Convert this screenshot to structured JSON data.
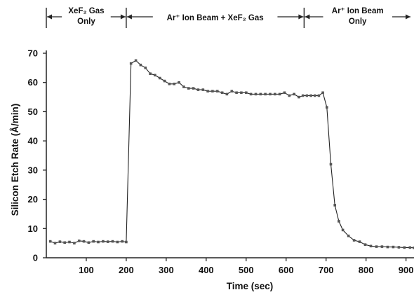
{
  "chart_data": {
    "type": "line",
    "title": "",
    "xlabel": "Time (sec)",
    "ylabel": "Silicon Etch Rate (Å/min)",
    "xlim": [
      0,
      920
    ],
    "ylim": [
      0,
      70
    ],
    "xticks": [
      100,
      200,
      300,
      400,
      500,
      600,
      700,
      800,
      900
    ],
    "yticks": [
      0,
      10,
      20,
      30,
      40,
      50,
      60,
      70
    ],
    "grid": false,
    "marker": "square",
    "line_color": "#222222",
    "marker_color": "#555555",
    "phases": [
      {
        "start": 0,
        "end": 200,
        "label": [
          "XeF₂ Gas",
          "Only"
        ]
      },
      {
        "start": 200,
        "end": 645,
        "label": [
          "Ar⁺ Ion Beam + XeF₂ Gas"
        ]
      },
      {
        "start": 645,
        "end": 920,
        "label": [
          "Ar⁺ Ion Beam",
          "Only"
        ]
      }
    ],
    "series": [
      {
        "x": [
          10,
          22,
          34,
          46,
          58,
          70,
          82,
          94,
          106,
          118,
          130,
          142,
          154,
          166,
          178,
          190,
          200,
          212,
          224,
          236,
          248,
          260,
          272,
          284,
          296,
          308,
          320,
          332,
          344,
          356,
          368,
          380,
          392,
          404,
          416,
          428,
          440,
          452,
          464,
          476,
          488,
          500,
          512,
          524,
          536,
          548,
          560,
          572,
          584,
          596,
          608,
          620,
          632,
          642,
          652,
          662,
          672,
          682,
          692,
          702,
          712,
          722,
          732,
          742,
          756,
          770,
          784,
          798,
          812,
          826,
          840,
          854,
          868,
          882,
          896,
          910,
          920
        ],
        "y": [
          5.6,
          5.0,
          5.5,
          5.2,
          5.4,
          5.0,
          5.8,
          5.6,
          5.2,
          5.6,
          5.4,
          5.6,
          5.5,
          5.6,
          5.4,
          5.6,
          5.4,
          66.5,
          67.5,
          66.0,
          65.0,
          63.0,
          62.5,
          61.5,
          60.5,
          59.5,
          59.5,
          60.0,
          58.5,
          58.0,
          58.0,
          57.5,
          57.5,
          57.0,
          57.0,
          57.0,
          56.5,
          56.0,
          57.0,
          56.5,
          56.5,
          56.5,
          56.0,
          56.0,
          56.0,
          56.0,
          56.0,
          56.0,
          56.0,
          56.5,
          55.5,
          56.0,
          55.0,
          55.5,
          55.5,
          55.5,
          55.5,
          55.5,
          56.5,
          51.5,
          32.0,
          18.0,
          12.5,
          9.5,
          7.5,
          6.0,
          5.5,
          4.5,
          4.0,
          3.8,
          3.8,
          3.7,
          3.7,
          3.6,
          3.5,
          3.5,
          3.4
        ]
      }
    ]
  }
}
